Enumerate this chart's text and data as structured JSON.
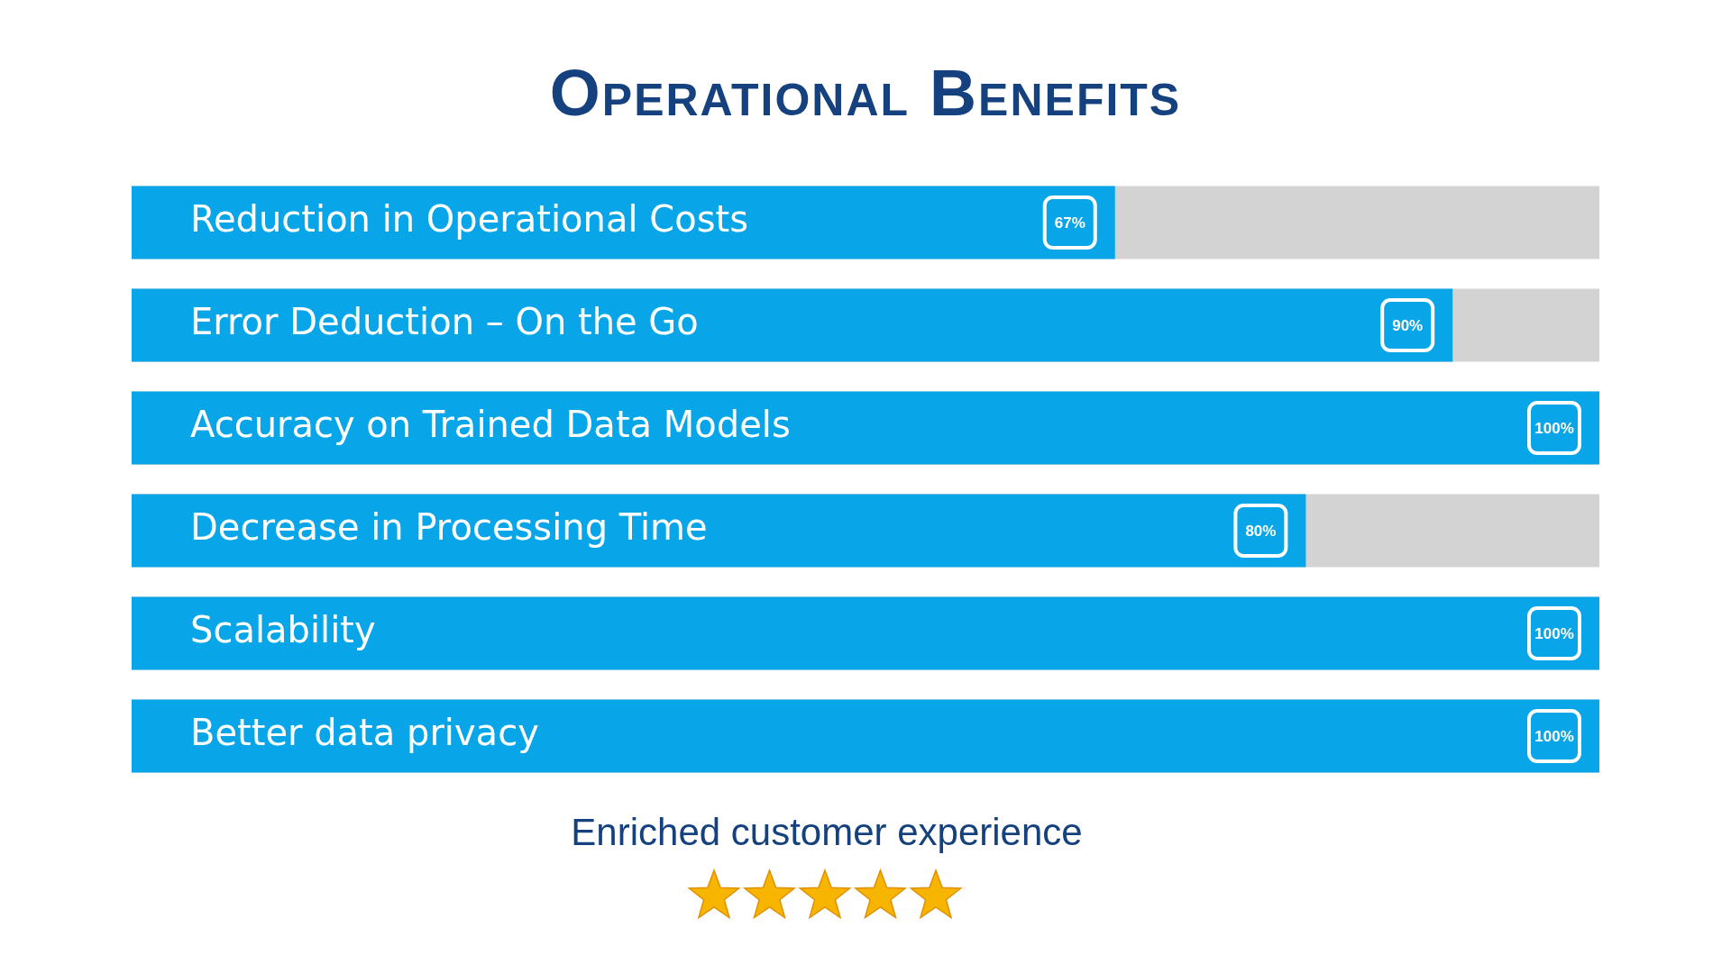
{
  "chart_data": {
    "type": "bar",
    "orientation": "horizontal",
    "title": "Operational Benefits",
    "categories": [
      "Reduction in Operational Costs",
      "Error Deduction – On the Go",
      "Accuracy on Trained Data Models",
      "Decrease in Processing Time",
      "Scalability",
      "Better data privacy"
    ],
    "values": [
      67,
      90,
      100,
      80,
      100,
      100
    ],
    "value_labels": [
      "67%",
      "90%",
      "100%",
      "80%",
      "100%",
      "100%"
    ],
    "color": "#08a6e8",
    "xlim": [
      0,
      100
    ],
    "tick_labels": false,
    "annotations": [
      "Enriched customer experience"
    ]
  }
}
